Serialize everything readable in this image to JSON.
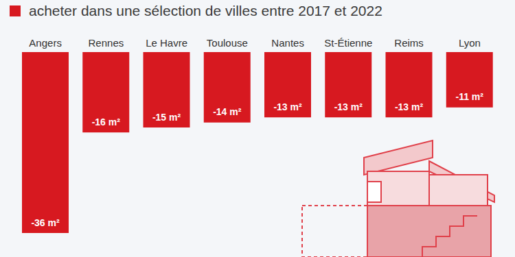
{
  "chart_data": {
    "type": "bar",
    "title": "acheter dans une sélection de villes entre 2017 et 2022",
    "categories": [
      "Angers",
      "Rennes",
      "Le Havre",
      "Toulouse",
      "Nantes",
      "St-Étienne",
      "Reims",
      "Lyon"
    ],
    "values": [
      -36,
      -16,
      -15,
      -14,
      -13,
      -13,
      -13,
      -11
    ],
    "value_labels": [
      "-36 m²",
      "-16 m²",
      "-15 m²",
      "-14 m²",
      "-13 m²",
      "-13 m²",
      "-13 m²",
      "-11 m²"
    ],
    "color": "#d71920",
    "ylim": [
      -36,
      0
    ],
    "data_labels": true,
    "tick_labels": "x",
    "grid": false
  }
}
